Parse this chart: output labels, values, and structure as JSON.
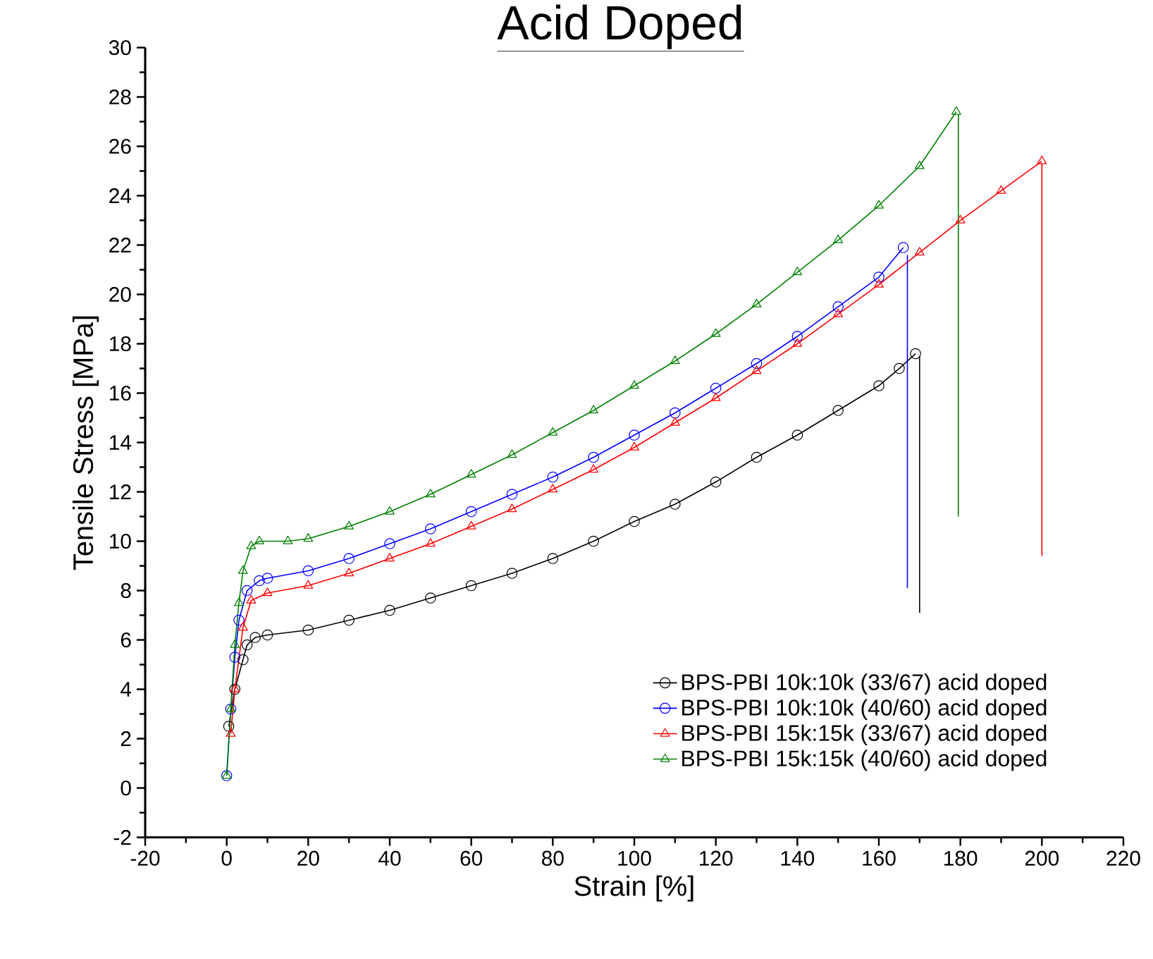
{
  "chart_data": {
    "type": "line",
    "title": "Acid Doped",
    "xlabel": "Strain [%]",
    "ylabel": "Tensile Stress [MPa]",
    "xlim": [
      -20,
      220
    ],
    "ylim": [
      -2,
      30
    ],
    "xticks": [
      -20,
      0,
      20,
      40,
      60,
      80,
      100,
      120,
      140,
      160,
      180,
      200,
      220
    ],
    "yticks": [
      -2,
      0,
      2,
      4,
      6,
      8,
      10,
      12,
      14,
      16,
      18,
      20,
      22,
      24,
      26,
      28,
      30
    ],
    "grid": false,
    "legend": "bottom right",
    "line_style": "solid",
    "series": [
      {
        "name": "BPS-PBI 10k:10k (33/67) acid doped",
        "color": "#000000",
        "marker": "circle",
        "x": [
          0.5,
          2,
          4,
          5,
          7,
          10,
          20,
          30,
          40,
          50,
          60,
          70,
          80,
          90,
          100,
          110,
          120,
          130,
          140,
          150,
          160,
          165,
          169
        ],
        "values": [
          2.5,
          4,
          5.2,
          5.8,
          6.1,
          6.2,
          6.4,
          6.8,
          7.2,
          7.7,
          8.2,
          8.7,
          9.3,
          10,
          10.8,
          11.5,
          12.4,
          13.4,
          14.3,
          15.3,
          16.3,
          17,
          17.6
        ]
      },
      {
        "name": "BPS-PBI 10k:10k (40/60) acid doped",
        "color": "#0000ff",
        "marker": "circle",
        "x": [
          0,
          1,
          2,
          3,
          5,
          8,
          10,
          20,
          30,
          40,
          50,
          60,
          70,
          80,
          90,
          100,
          110,
          120,
          130,
          140,
          150,
          160,
          166
        ],
        "values": [
          0.5,
          3.2,
          5.3,
          6.8,
          8,
          8.4,
          8.5,
          8.8,
          9.3,
          9.9,
          10.5,
          11.2,
          11.9,
          12.6,
          13.4,
          14.3,
          15.2,
          16.2,
          17.2,
          18.3,
          19.5,
          20.7,
          21.9
        ]
      },
      {
        "name": "BPS-PBI 15k:15k (33/67) acid doped",
        "color": "#ff0000",
        "marker": "triangle",
        "x": [
          1,
          2,
          4,
          6,
          10,
          20,
          30,
          40,
          50,
          60,
          70,
          80,
          90,
          100,
          110,
          120,
          130,
          140,
          150,
          160,
          170,
          180,
          190,
          200
        ],
        "values": [
          2.2,
          4,
          6.5,
          7.6,
          7.9,
          8.2,
          8.7,
          9.3,
          9.9,
          10.6,
          11.3,
          12.1,
          12.9,
          13.8,
          14.8,
          15.8,
          16.9,
          18,
          19.2,
          20.4,
          21.7,
          23,
          24.2,
          25.4
        ]
      },
      {
        "name": "BPS-PBI 15k:15k (40/60) acid doped",
        "color": "#008000",
        "marker": "triangle",
        "x": [
          0,
          1,
          2,
          3,
          4,
          6,
          8,
          15,
          20,
          30,
          40,
          50,
          60,
          70,
          80,
          90,
          100,
          110,
          120,
          130,
          140,
          150,
          160,
          170,
          179
        ],
        "values": [
          0.5,
          3.2,
          5.8,
          7.5,
          8.8,
          9.8,
          10,
          10,
          10.1,
          10.6,
          11.2,
          11.9,
          12.7,
          13.5,
          14.4,
          15.3,
          16.3,
          17.3,
          18.4,
          19.6,
          20.9,
          22.2,
          23.6,
          25.2,
          27.4
        ]
      },
      {
        "color": "#000000",
        "marker": "none",
        "x": [
          170,
          170
        ],
        "values": [
          17.5,
          7.1
        ]
      },
      {
        "color": "#0000ff",
        "marker": "none",
        "x": [
          167,
          167
        ],
        "values": [
          21.6,
          8.1
        ]
      },
      {
        "color": "#ff0000",
        "marker": "none",
        "x": [
          200,
          200
        ],
        "values": [
          25.3,
          9.4
        ]
      },
      {
        "color": "#008000",
        "marker": "none",
        "x": [
          179.5,
          179.5
        ],
        "values": [
          27.3,
          11
        ]
      }
    ]
  }
}
